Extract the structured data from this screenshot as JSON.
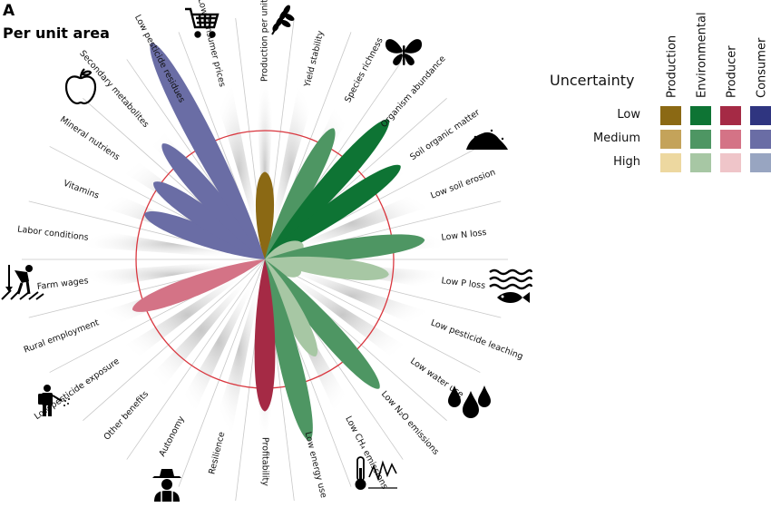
{
  "panel_letter": "A",
  "panel_title": "Per unit area",
  "chart_data": {
    "type": "radial-petal",
    "title": "Per unit area",
    "axis_scale": "relative effect; red circle marks no difference (1.0)",
    "reference_value": 1.0,
    "rmax": 2.8,
    "categories": [
      {
        "name": "Production",
        "colors": {
          "low": "#8B6914",
          "medium": "#C4A35A",
          "high": "#EDD8A0"
        }
      },
      {
        "name": "Environmental",
        "colors": {
          "low": "#0E7434",
          "medium": "#4E9663",
          "high": "#A7C7A4"
        }
      },
      {
        "name": "Producer",
        "colors": {
          "low": "#A52A45",
          "medium": "#D47386",
          "high": "#EFC5C9"
        }
      },
      {
        "name": "Consumer",
        "colors": {
          "low": "#2F3580",
          "medium": "#6A6DA5",
          "high": "#98A5C1"
        }
      }
    ],
    "indicators": [
      {
        "label": "Production per unit area",
        "category": "Production",
        "value": 0.68,
        "uncertainty": "low"
      },
      {
        "label": "Yield stability",
        "category": "Production",
        "value": null,
        "uncertainty": null
      },
      {
        "label": "Species richness",
        "category": "Environmental",
        "value": 1.15,
        "uncertainty": "medium"
      },
      {
        "label": "Organism abundance",
        "category": "Environmental",
        "value": 1.45,
        "uncertainty": "low"
      },
      {
        "label": "Soil organic matter",
        "category": "Environmental",
        "value": 1.28,
        "uncertainty": "low"
      },
      {
        "label": "Low soil erosion",
        "category": "Environmental",
        "value": 0.32,
        "uncertainty": "high"
      },
      {
        "label": "Low N loss",
        "category": "Environmental",
        "value": 1.25,
        "uncertainty": "medium"
      },
      {
        "label": "Low P loss",
        "category": "Environmental",
        "value": 0.97,
        "uncertainty": "high"
      },
      {
        "label": "Low pesticide leaching",
        "category": "Environmental",
        "value": 0.3,
        "uncertainty": "high"
      },
      {
        "label": "Low water use",
        "category": "Environmental",
        "value": null,
        "uncertainty": null
      },
      {
        "label": "Low N₂O emissions",
        "category": "Environmental",
        "value": 1.34,
        "uncertainty": "medium"
      },
      {
        "label": "Low CH₄ emissions",
        "category": "Environmental",
        "value": 0.85,
        "uncertainty": "high"
      },
      {
        "label": "Low energy use",
        "category": "Environmental",
        "value": 1.45,
        "uncertainty": "medium"
      },
      {
        "label": "Profitability",
        "category": "Producer",
        "value": 1.18,
        "uncertainty": "low"
      },
      {
        "label": "Resilience",
        "category": "Producer",
        "value": null,
        "uncertainty": null
      },
      {
        "label": "Autonomy",
        "category": "Producer",
        "value": null,
        "uncertainty": null
      },
      {
        "label": "Other benefits",
        "category": "Producer",
        "value": null,
        "uncertainty": null
      },
      {
        "label": "Low pesticide exposure",
        "category": "Producer",
        "value": null,
        "uncertainty": null
      },
      {
        "label": "Rural employment",
        "category": "Producer",
        "value": 1.1,
        "uncertainty": "medium"
      },
      {
        "label": "Farm wages",
        "category": "Producer",
        "value": null,
        "uncertainty": null
      },
      {
        "label": "Labor conditions",
        "category": "Producer",
        "value": null,
        "uncertainty": null
      },
      {
        "label": "Vitamins",
        "category": "Consumer",
        "value": 1.0,
        "uncertainty": "medium"
      },
      {
        "label": "Mineral nutriens",
        "category": "Consumer",
        "value": 1.05,
        "uncertainty": "medium"
      },
      {
        "label": "Secondary metabolites",
        "category": "Consumer",
        "value": 1.2,
        "uncertainty": "medium"
      },
      {
        "label": "Low pesticide residues",
        "category": "Consumer",
        "value": 1.9,
        "uncertainty": "medium"
      },
      {
        "label": "Low consumer prices",
        "category": "Consumer",
        "value": null,
        "uncertainty": null
      }
    ],
    "legend": {
      "title": "Uncertainty",
      "levels": [
        "Low",
        "Medium",
        "High"
      ],
      "placement": "top-right"
    },
    "icons": [
      "cart-icon",
      "wheat-icon",
      "butterfly-icon",
      "soil-icon",
      "water-fish-icon",
      "droplets-icon",
      "thermometer-graph-icon",
      "farmer-icon",
      "sprayer-person-icon",
      "worker-field-icon",
      "apple-icon"
    ]
  }
}
